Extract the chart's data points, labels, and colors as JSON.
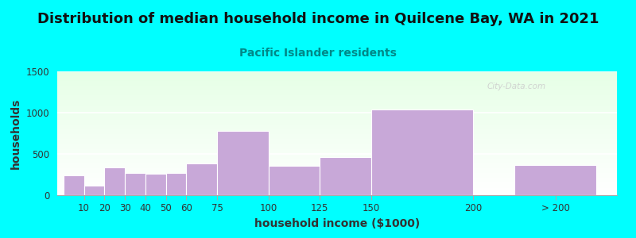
{
  "title": "Distribution of median household income in Quilcene Bay, WA in 2021",
  "subtitle": "Pacific Islander residents",
  "xlabel": "household income ($1000)",
  "ylabel": "households",
  "background_color": "#00FFFF",
  "bar_color": "#C8A8D8",
  "bar_edge_color": "#ffffff",
  "subtitle_color": "#008888",
  "title_color": "#222222",
  "watermark": "City-Data.com",
  "ylim": [
    0,
    1500
  ],
  "yticks": [
    0,
    500,
    1000,
    1500
  ],
  "bar_specs": [
    [
      0,
      1,
      240,
      "10"
    ],
    [
      1,
      1,
      120,
      "20"
    ],
    [
      2,
      1,
      340,
      "30"
    ],
    [
      3,
      1,
      270,
      "40"
    ],
    [
      4,
      1,
      260,
      "50"
    ],
    [
      5,
      1,
      270,
      "60"
    ],
    [
      6,
      1.5,
      380,
      "75"
    ],
    [
      7.5,
      2.5,
      775,
      "100"
    ],
    [
      10,
      2.5,
      360,
      "125"
    ],
    [
      12.5,
      2.5,
      460,
      "150"
    ],
    [
      15,
      5,
      1040,
      "200"
    ],
    [
      22,
      4,
      370,
      "> 200"
    ]
  ],
  "xlim": [
    -0.3,
    27
  ],
  "title_fontsize": 13,
  "subtitle_fontsize": 10,
  "axis_label_fontsize": 10,
  "tick_fontsize": 8.5
}
